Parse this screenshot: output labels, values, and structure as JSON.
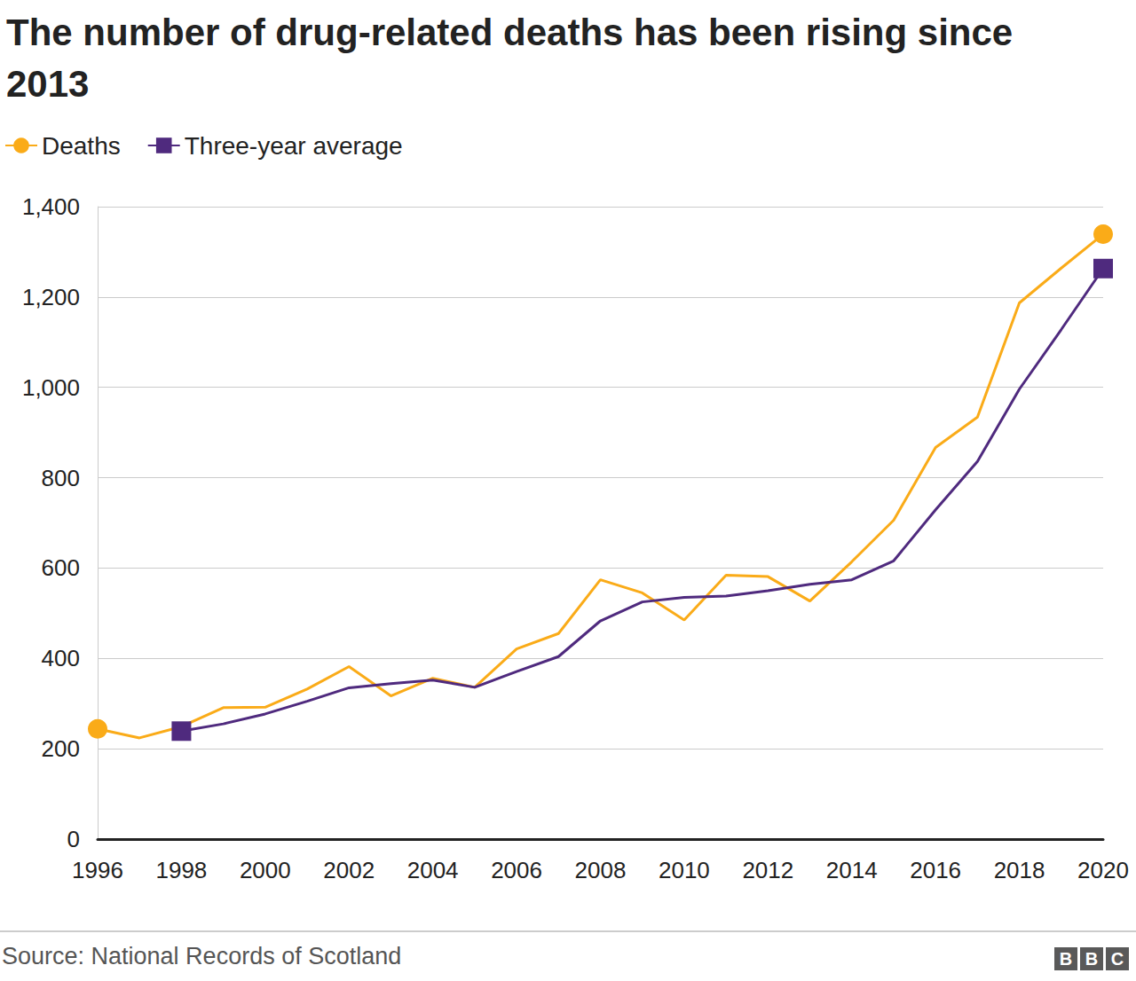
{
  "chart_data": {
    "type": "line",
    "title": "The number of drug-related deaths has been rising since 2013",
    "source": "Source: National Records of Scotland",
    "logo": "BBC",
    "x": [
      1996,
      1997,
      1998,
      1999,
      2000,
      2001,
      2002,
      2003,
      2004,
      2005,
      2006,
      2007,
      2008,
      2009,
      2010,
      2011,
      2012,
      2013,
      2014,
      2015,
      2016,
      2017,
      2018,
      2019,
      2020
    ],
    "series": [
      {
        "name": "Deaths",
        "color": "#faab18",
        "marker": "circle",
        "values": [
          244,
          224,
          249,
          291,
          292,
          332,
          382,
          317,
          356,
          336,
          421,
          455,
          574,
          545,
          485,
          584,
          581,
          527,
          614,
          706,
          867,
          934,
          1187,
          1264,
          1339
        ]
      },
      {
        "name": "Three-year average",
        "color": "#4f2a7e",
        "marker": "square",
        "values": [
          null,
          null,
          239,
          255,
          277,
          305,
          335,
          344,
          352,
          336,
          371,
          404,
          483,
          525,
          535,
          538,
          550,
          564,
          574,
          616,
          729,
          836,
          996,
          1128,
          1263
        ]
      }
    ],
    "xlim": [
      1996,
      2020
    ],
    "xticks": [
      1996,
      1998,
      2000,
      2002,
      2004,
      2006,
      2008,
      2010,
      2012,
      2014,
      2016,
      2018,
      2020
    ],
    "ylim": [
      0,
      1400
    ],
    "yticks": [
      0,
      200,
      400,
      600,
      800,
      {
        "value": 1000,
        "label": "1,000"
      },
      {
        "value": 1200,
        "label": "1,200"
      },
      {
        "value": 1400,
        "label": "1,400"
      }
    ],
    "grid": true,
    "legend": "top-left"
  }
}
